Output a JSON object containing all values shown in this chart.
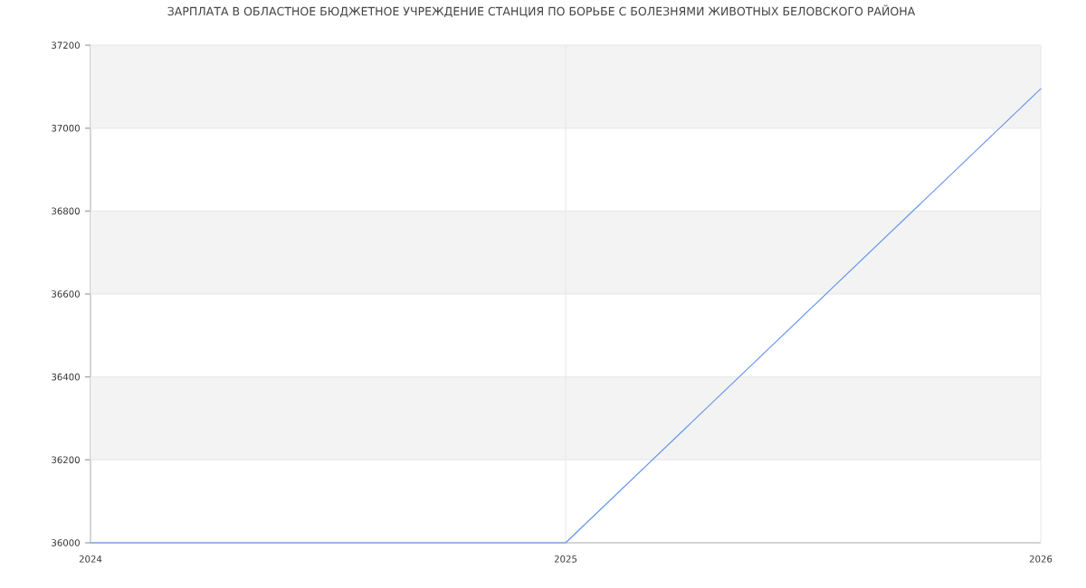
{
  "chart_data": {
    "type": "line",
    "title": "ЗАРПЛАТА В ОБЛАСТНОЕ БЮДЖЕТНОЕ УЧРЕЖДЕНИЕ СТАНЦИЯ ПО БОРЬБЕ С БОЛЕЗНЯМИ ЖИВОТНЫХ БЕЛОВСКОГО РАЙОНА",
    "x": [
      2024,
      2025,
      2026
    ],
    "values": [
      36000,
      36000,
      37095
    ],
    "color": "#6495ed",
    "xlim": [
      2024,
      2026
    ],
    "xticks": [
      2024,
      2025,
      2026
    ],
    "ylim": [
      36000,
      37200
    ],
    "yticks": [
      36000,
      36200,
      36400,
      36600,
      36800,
      37000,
      37200
    ],
    "grid": true,
    "bands": [
      {
        "axis": "y",
        "from": 36200,
        "to": 36400,
        "color": "#f3f3f3"
      },
      {
        "axis": "y",
        "from": 36600,
        "to": 36800,
        "color": "#f3f3f3"
      },
      {
        "axis": "y",
        "from": 37000,
        "to": 37200,
        "color": "#f3f3f3"
      }
    ],
    "marker": "none",
    "line_style": "solid"
  }
}
